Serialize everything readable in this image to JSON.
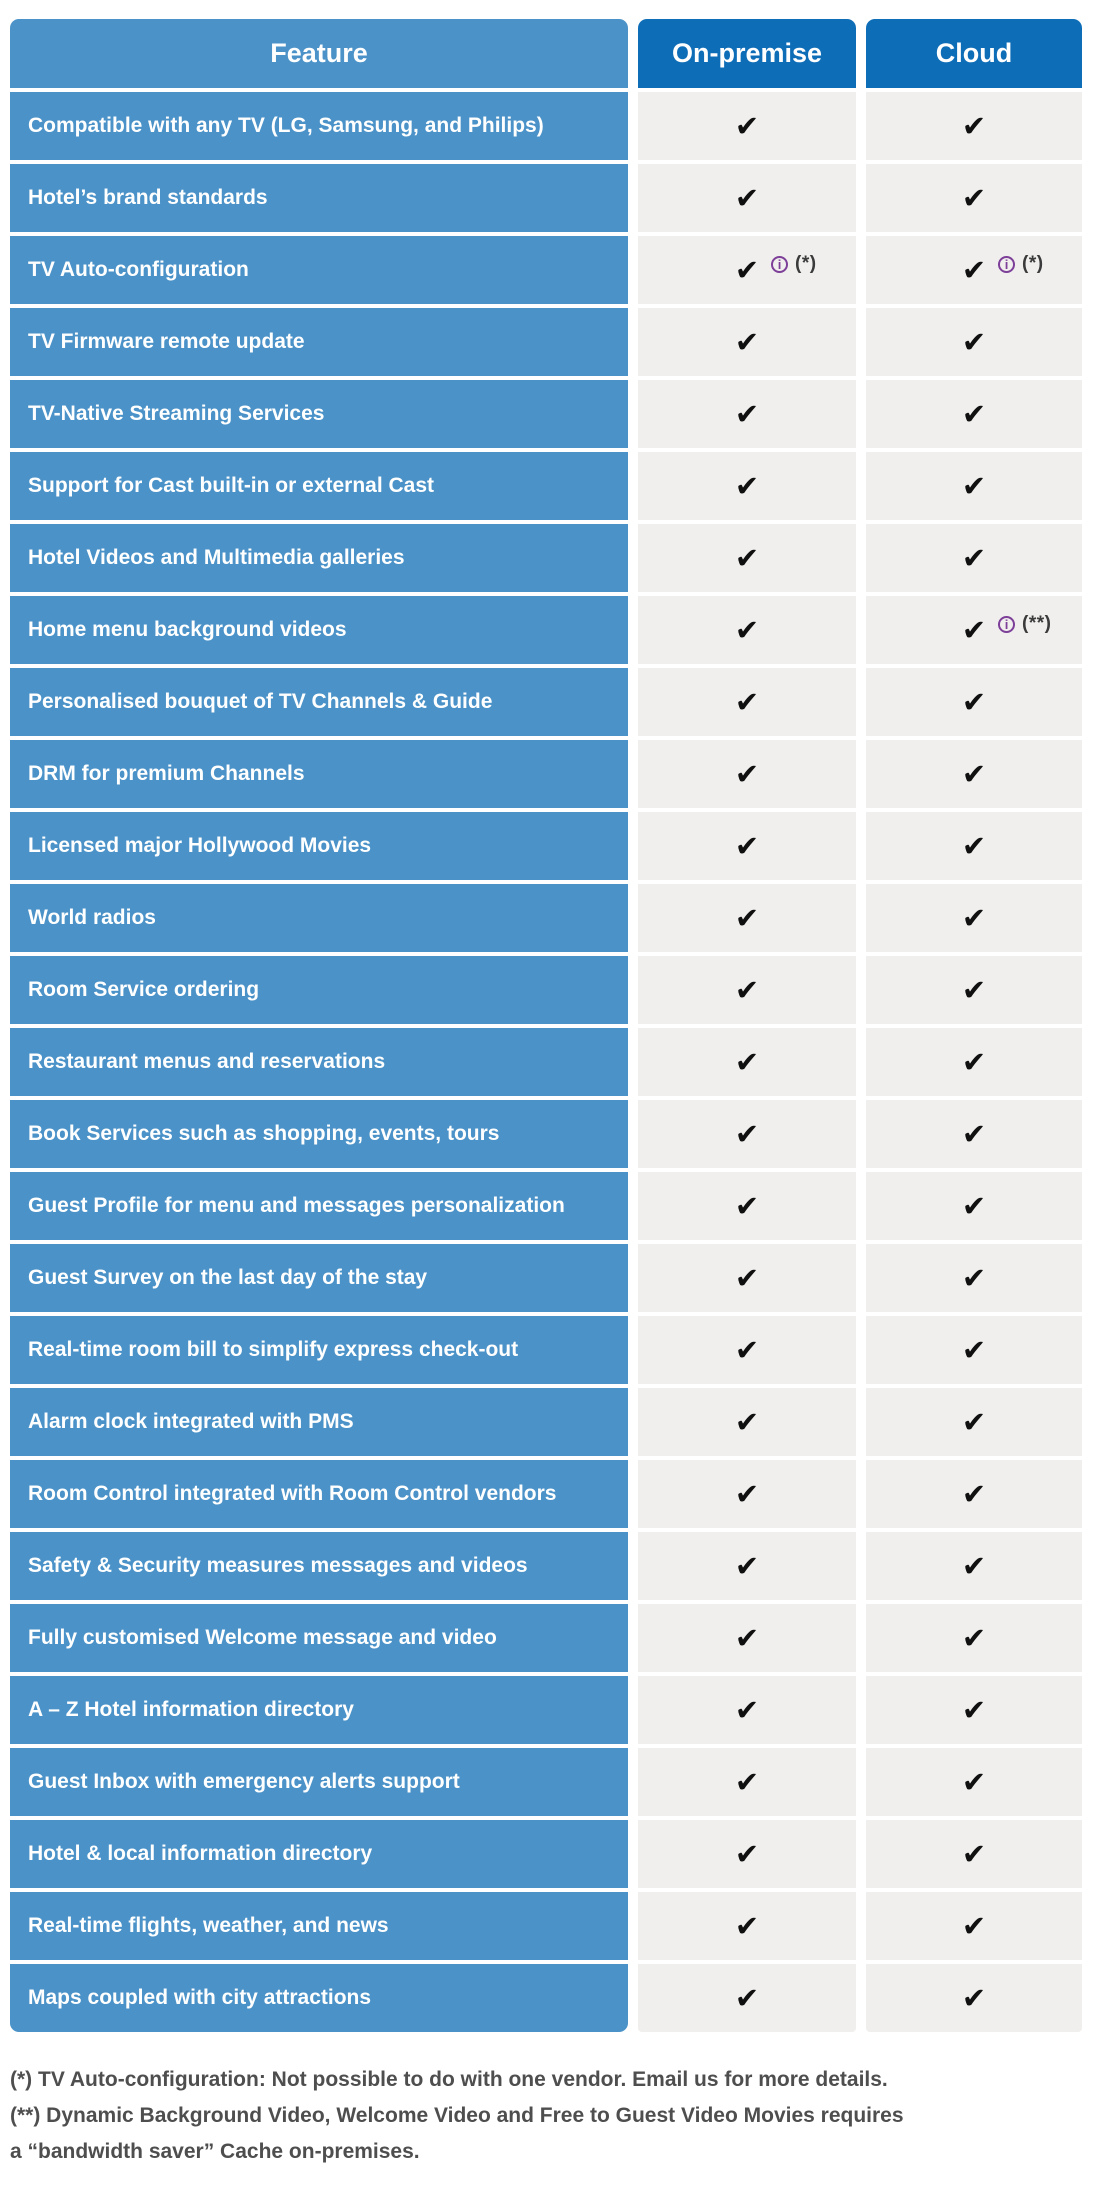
{
  "chart_data": {
    "type": "table",
    "title": "",
    "columns": [
      {
        "label": "Feature"
      },
      {
        "label": "On-premise"
      },
      {
        "label": "Cloud"
      }
    ],
    "rows": [
      {
        "feature": "Compatible with any TV (LG, Samsung, and Philips)",
        "on_premise": {
          "check": true,
          "info": false,
          "note": ""
        },
        "cloud": {
          "check": true,
          "info": false,
          "note": ""
        }
      },
      {
        "feature": "Hotel’s brand standards",
        "on_premise": {
          "check": true,
          "info": false,
          "note": ""
        },
        "cloud": {
          "check": true,
          "info": false,
          "note": ""
        }
      },
      {
        "feature": "TV Auto-configuration",
        "on_premise": {
          "check": true,
          "info": true,
          "note": "(*)"
        },
        "cloud": {
          "check": true,
          "info": true,
          "note": "(*)"
        }
      },
      {
        "feature": "TV Firmware remote update",
        "on_premise": {
          "check": true,
          "info": false,
          "note": ""
        },
        "cloud": {
          "check": true,
          "info": false,
          "note": ""
        }
      },
      {
        "feature": "TV-Native Streaming Services",
        "on_premise": {
          "check": true,
          "info": false,
          "note": ""
        },
        "cloud": {
          "check": true,
          "info": false,
          "note": ""
        }
      },
      {
        "feature": "Support for Cast built-in or external Cast",
        "on_premise": {
          "check": true,
          "info": false,
          "note": ""
        },
        "cloud": {
          "check": true,
          "info": false,
          "note": ""
        }
      },
      {
        "feature": "Hotel Videos and Multimedia galleries",
        "on_premise": {
          "check": true,
          "info": false,
          "note": ""
        },
        "cloud": {
          "check": true,
          "info": false,
          "note": ""
        }
      },
      {
        "feature": "Home menu background videos",
        "on_premise": {
          "check": true,
          "info": false,
          "note": ""
        },
        "cloud": {
          "check": true,
          "info": true,
          "note": "(**)"
        }
      },
      {
        "feature": "Personalised bouquet of TV Channels & Guide",
        "on_premise": {
          "check": true,
          "info": false,
          "note": ""
        },
        "cloud": {
          "check": true,
          "info": false,
          "note": ""
        }
      },
      {
        "feature": "DRM for premium Channels",
        "on_premise": {
          "check": true,
          "info": false,
          "note": ""
        },
        "cloud": {
          "check": true,
          "info": false,
          "note": ""
        }
      },
      {
        "feature": "Licensed major Hollywood Movies",
        "on_premise": {
          "check": true,
          "info": false,
          "note": ""
        },
        "cloud": {
          "check": true,
          "info": false,
          "note": ""
        }
      },
      {
        "feature": "World radios",
        "on_premise": {
          "check": true,
          "info": false,
          "note": ""
        },
        "cloud": {
          "check": true,
          "info": false,
          "note": ""
        }
      },
      {
        "feature": "Room Service ordering",
        "on_premise": {
          "check": true,
          "info": false,
          "note": ""
        },
        "cloud": {
          "check": true,
          "info": false,
          "note": ""
        }
      },
      {
        "feature": "Restaurant menus and reservations",
        "on_premise": {
          "check": true,
          "info": false,
          "note": ""
        },
        "cloud": {
          "check": true,
          "info": false,
          "note": ""
        }
      },
      {
        "feature": "Book Services such as shopping, events, tours",
        "on_premise": {
          "check": true,
          "info": false,
          "note": ""
        },
        "cloud": {
          "check": true,
          "info": false,
          "note": ""
        }
      },
      {
        "feature": "Guest Profile for menu and messages personalization",
        "on_premise": {
          "check": true,
          "info": false,
          "note": ""
        },
        "cloud": {
          "check": true,
          "info": false,
          "note": ""
        }
      },
      {
        "feature": "Guest Survey on the last day of the stay",
        "on_premise": {
          "check": true,
          "info": false,
          "note": ""
        },
        "cloud": {
          "check": true,
          "info": false,
          "note": ""
        }
      },
      {
        "feature": "Real-time room bill to simplify express check-out",
        "on_premise": {
          "check": true,
          "info": false,
          "note": ""
        },
        "cloud": {
          "check": true,
          "info": false,
          "note": ""
        }
      },
      {
        "feature": "Alarm clock integrated with PMS",
        "on_premise": {
          "check": true,
          "info": false,
          "note": ""
        },
        "cloud": {
          "check": true,
          "info": false,
          "note": ""
        }
      },
      {
        "feature": "Room Control integrated with Room Control vendors",
        "on_premise": {
          "check": true,
          "info": false,
          "note": ""
        },
        "cloud": {
          "check": true,
          "info": false,
          "note": ""
        }
      },
      {
        "feature": "Safety & Security measures messages and videos",
        "on_premise": {
          "check": true,
          "info": false,
          "note": ""
        },
        "cloud": {
          "check": true,
          "info": false,
          "note": ""
        }
      },
      {
        "feature": "Fully customised Welcome message and video",
        "on_premise": {
          "check": true,
          "info": false,
          "note": ""
        },
        "cloud": {
          "check": true,
          "info": false,
          "note": ""
        }
      },
      {
        "feature": "A – Z Hotel information directory",
        "on_premise": {
          "check": true,
          "info": false,
          "note": ""
        },
        "cloud": {
          "check": true,
          "info": false,
          "note": ""
        }
      },
      {
        "feature": "Guest Inbox with emergency alerts support",
        "on_premise": {
          "check": true,
          "info": false,
          "note": ""
        },
        "cloud": {
          "check": true,
          "info": false,
          "note": ""
        }
      },
      {
        "feature": "Hotel & local information directory",
        "on_premise": {
          "check": true,
          "info": false,
          "note": ""
        },
        "cloud": {
          "check": true,
          "info": false,
          "note": ""
        }
      },
      {
        "feature": "Real-time flights, weather, and news",
        "on_premise": {
          "check": true,
          "info": false,
          "note": ""
        },
        "cloud": {
          "check": true,
          "info": false,
          "note": ""
        }
      },
      {
        "feature": "Maps coupled with city attractions",
        "on_premise": {
          "check": true,
          "info": false,
          "note": ""
        },
        "cloud": {
          "check": true,
          "info": false,
          "note": ""
        }
      }
    ]
  },
  "icons": {
    "check_glyph": "✔",
    "info_glyph": "i"
  },
  "footnotes": [
    "(*) TV Auto-configuration: Not possible to do with one vendor. Email us for more details.",
    "(**) Dynamic Background Video, Welcome Video and Free to Guest Video Movies requires",
    "a “bandwidth saver” Cache on-premises."
  ],
  "colors": {
    "feature_blue": "#4a92c8",
    "header_blue": "#0e6db7",
    "cell_gray": "#f0efee",
    "check_black": "#101010",
    "info_purple": "#7d3f98",
    "note_gray": "#3b3b3b",
    "footnote_gray": "#4e4e4e",
    "page_bg": "#ffffff",
    "header_text": "#ffffff",
    "feature_text": "#ffffff"
  }
}
